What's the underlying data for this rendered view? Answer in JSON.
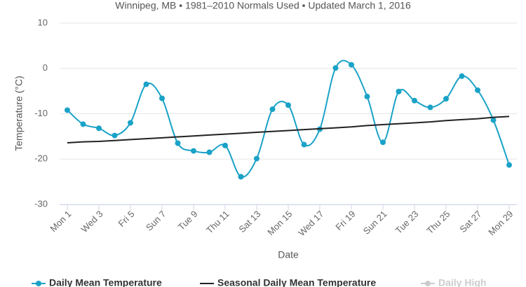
{
  "chart_data": {
    "type": "spline",
    "subtitle": "Winnipeg, MB • 1981–2010 Normals Used • Updated March 1, 2016",
    "y_label": "Temperature (°C)",
    "x_label": "Date",
    "categories": [
      "Mon 1",
      null,
      "Wed 3",
      null,
      "Fri 5",
      null,
      "Sun 7",
      null,
      "Tue 9",
      null,
      "Thu 11",
      null,
      "Sat 13",
      null,
      "Mon 15",
      null,
      "Wed 17",
      null,
      "Fri 19",
      null,
      "Sun 21",
      null,
      "Tue 23",
      null,
      "Thu 25",
      null,
      "Sat 27",
      null,
      "Mon 29"
    ],
    "series": [
      {
        "name": "Daily Mean Temperature",
        "color": "#1aa2c7",
        "marker": true,
        "values": [
          -9.2,
          -12.3,
          -13.2,
          -14.8,
          -12.0,
          -3.5,
          -6.6,
          -16.5,
          -18.2,
          -18.5,
          -17.0,
          -23.9,
          -19.9,
          -9.0,
          -8.1,
          -16.8,
          -13.4,
          0.1,
          0.8,
          -6.2,
          -16.3,
          -5.1,
          -7.1,
          -8.6,
          -6.7,
          -1.7,
          -4.8,
          -11.4,
          -21.3
        ]
      },
      {
        "name": "Seasonal Daily Mean Temperature",
        "color": "#222222",
        "marker": false,
        "values": [
          -16.4,
          -16.2,
          -16.1,
          -15.9,
          -15.7,
          -15.5,
          -15.3,
          -15.1,
          -14.9,
          -14.7,
          -14.5,
          -14.3,
          -14.1,
          -13.9,
          -13.7,
          -13.5,
          -13.3,
          -13.1,
          -12.9,
          -12.6,
          -12.4,
          -12.2,
          -12.0,
          -11.8,
          -11.5,
          -11.3,
          -11.1,
          -10.8,
          -10.6
        ]
      },
      {
        "name": "Daily High",
        "color": "#cccccc",
        "visible": false
      }
    ],
    "ylim": [
      -30,
      10
    ],
    "yticks": [
      -30,
      -20,
      -10,
      0,
      10
    ],
    "grid": true
  }
}
